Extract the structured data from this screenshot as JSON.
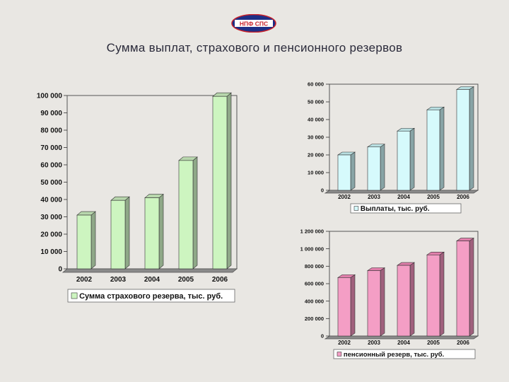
{
  "logo": {
    "text": "НПФ СПС"
  },
  "title": "Сумма выплат, страхового и пенсионного резервов",
  "chart_data": [
    {
      "id": "insurance",
      "type": "bar",
      "categories": [
        "2002",
        "2003",
        "2004",
        "2005",
        "2006"
      ],
      "series": [
        {
          "name": "Сумма страхового резерва, тыс. руб.",
          "values": [
            31000,
            39500,
            41000,
            62500,
            99500
          ]
        }
      ],
      "ylim": [
        0,
        100000
      ],
      "ytick_labels": [
        "0",
        "10 000",
        "20 000",
        "30 000",
        "40 000",
        "50 000",
        "60 000",
        "70 000",
        "80 000",
        "90 000",
        "100 000"
      ],
      "legend": "bottom",
      "colors": {
        "front": "#cdf5c0",
        "side": "#8fa888",
        "top": "#b8d7ad"
      }
    },
    {
      "id": "payments",
      "type": "bar",
      "categories": [
        "2002",
        "2003",
        "2004",
        "2005",
        "2006"
      ],
      "series": [
        {
          "name": "Выплаты, тыс. руб.",
          "values": [
            20000,
            24500,
            33500,
            45500,
            57000
          ]
        }
      ],
      "ylim": [
        0,
        60000
      ],
      "ytick_labels": [
        "0",
        "10 000",
        "20 000",
        "30 000",
        "40 000",
        "50 000",
        "60 000"
      ],
      "legend": "bottom",
      "colors": {
        "front": "#d6fafc",
        "side": "#88a4a6",
        "top": "#b8dfe1"
      }
    },
    {
      "id": "pension",
      "type": "bar",
      "categories": [
        "2002",
        "2003",
        "2004",
        "2005",
        "2006"
      ],
      "series": [
        {
          "name": "пенсионный резерв, тыс. руб.",
          "values": [
            670000,
            750000,
            810000,
            930000,
            1090000
          ]
        }
      ],
      "ylim": [
        0,
        1200000
      ],
      "ytick_labels": [
        "0",
        "200 000",
        "400 000",
        "600 000",
        "800 000",
        "1 000 000",
        "1 200 000"
      ],
      "legend": "bottom",
      "colors": {
        "front": "#f49ec5",
        "side": "#a0607d",
        "top": "#e07fab"
      }
    }
  ]
}
